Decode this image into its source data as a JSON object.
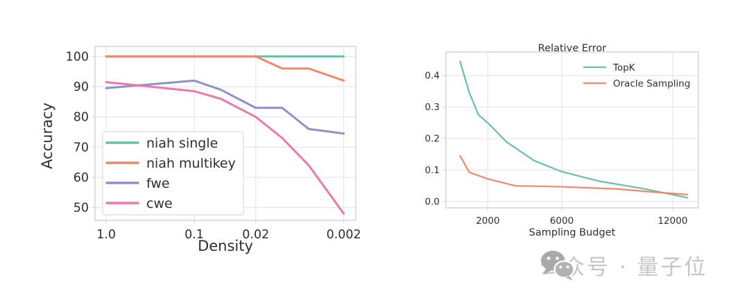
{
  "watermark": {
    "text": "公众号 · 量子位",
    "color": "#c5c5c5",
    "icon": "wechat-icon"
  },
  "style": {
    "grid_color": "#e4e4ea",
    "spine_color": "#cccdd4",
    "text_color": "#2e2e2e",
    "legend_border_color": "#dcdcdc",
    "teal": "#69bfa5",
    "orange": "#f0876a",
    "purple": "#8b92c8",
    "pink": "#ec77ab"
  },
  "chart_data": [
    {
      "id": "accuracy-vs-density",
      "type": "line",
      "title": "",
      "xlabel": "Density",
      "ylabel": "Accuracy",
      "x_scale": "log",
      "xlim": [
        1.34,
        0.00146
      ],
      "ylim": [
        45.8,
        103.3
      ],
      "grid": true,
      "x_ticks": {
        "values": [
          1.0,
          0.1,
          0.02,
          0.002
        ],
        "labels": [
          "1.0",
          "0.1",
          "0.02",
          "0.002"
        ]
      },
      "y_ticks": {
        "values": [
          50,
          60,
          70,
          80,
          90,
          100
        ],
        "labels": [
          "50",
          "60",
          "70",
          "80",
          "90",
          "100"
        ]
      },
      "legend": {
        "position": "lower left",
        "frame": true
      },
      "series": [
        {
          "name": "niah single",
          "color": "#69bfa5",
          "x": [
            1.0,
            0.1,
            0.05,
            0.02,
            0.01,
            0.005,
            0.002
          ],
          "y": [
            100,
            100,
            100,
            100,
            100,
            100,
            100
          ]
        },
        {
          "name": "niah multikey",
          "color": "#f0876a",
          "x": [
            1.0,
            0.1,
            0.05,
            0.02,
            0.01,
            0.005,
            0.002
          ],
          "y": [
            100,
            100,
            100,
            100,
            96,
            96,
            92
          ]
        },
        {
          "name": "fwe",
          "color": "#8b92c8",
          "x": [
            1.0,
            0.1,
            0.05,
            0.02,
            0.01,
            0.005,
            0.002
          ],
          "y": [
            89.5,
            92,
            89,
            83,
            83,
            76,
            74.5
          ]
        },
        {
          "name": "cwe",
          "color": "#ec77ab",
          "x": [
            1.0,
            0.1,
            0.05,
            0.02,
            0.01,
            0.005,
            0.002
          ],
          "y": [
            91.5,
            88.5,
            86,
            80,
            73,
            64,
            48
          ]
        }
      ]
    },
    {
      "id": "relative-error-vs-budget",
      "type": "line",
      "title": "Relative Error",
      "xlabel": "Sampling Budget",
      "ylabel": "",
      "x_scale": "linear",
      "xlim": [
        -265,
        13390
      ],
      "ylim": [
        -0.02,
        0.475
      ],
      "grid": true,
      "x_ticks": {
        "values": [
          2000,
          6000,
          12000
        ],
        "labels": [
          "2000",
          "6000",
          "12000"
        ]
      },
      "y_ticks": {
        "values": [
          0,
          0.1,
          0.2,
          0.3,
          0.4
        ],
        "labels": [
          "0.0",
          "0.1",
          "0.2",
          "0.3",
          "0.4"
        ]
      },
      "legend": {
        "position": "upper right",
        "frame": false
      },
      "series": [
        {
          "name": "TopK",
          "color": "#69bfa5",
          "x": [
            500,
            1000,
            1500,
            2000,
            3000,
            4500,
            6000,
            8000,
            10500,
            12800
          ],
          "y": [
            0.445,
            0.345,
            0.275,
            0.25,
            0.19,
            0.13,
            0.095,
            0.065,
            0.04,
            0.012
          ]
        },
        {
          "name": "Oracle Sampling",
          "color": "#f0876a",
          "x": [
            500,
            1000,
            2000,
            3500,
            6000,
            9000,
            11000,
            12800
          ],
          "y": [
            0.145,
            0.093,
            0.072,
            0.05,
            0.047,
            0.04,
            0.03,
            0.022
          ]
        }
      ]
    }
  ]
}
